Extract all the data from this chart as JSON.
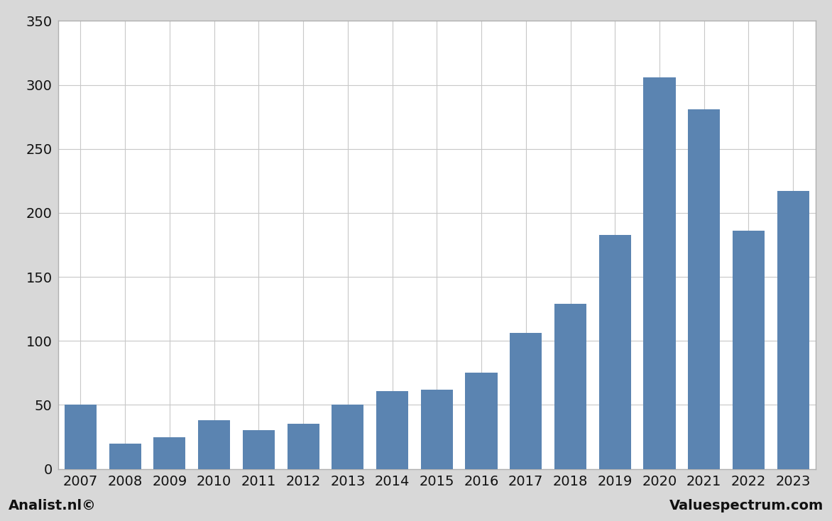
{
  "years": [
    2007,
    2008,
    2009,
    2010,
    2011,
    2012,
    2013,
    2014,
    2015,
    2016,
    2017,
    2018,
    2019,
    2020,
    2021,
    2022,
    2023
  ],
  "values": [
    50,
    20,
    25,
    38,
    30,
    35,
    50,
    61,
    62,
    75,
    106,
    129,
    183,
    306,
    281,
    186,
    217
  ],
  "bar_color": "#5b84b1",
  "background_color": "#ffffff",
  "plot_bg_color": "#ffffff",
  "outer_bg_color": "#d8d8d8",
  "footer_bg_color": "#cccccc",
  "grid_color": "#c8c8c8",
  "border_color": "#b0b0b0",
  "ylim": [
    0,
    350
  ],
  "yticks": [
    0,
    50,
    100,
    150,
    200,
    250,
    300,
    350
  ],
  "footer_left": "Analist.nl©",
  "footer_right": "Valuespectrum.com",
  "tick_fontsize": 14,
  "footer_fontsize": 14
}
